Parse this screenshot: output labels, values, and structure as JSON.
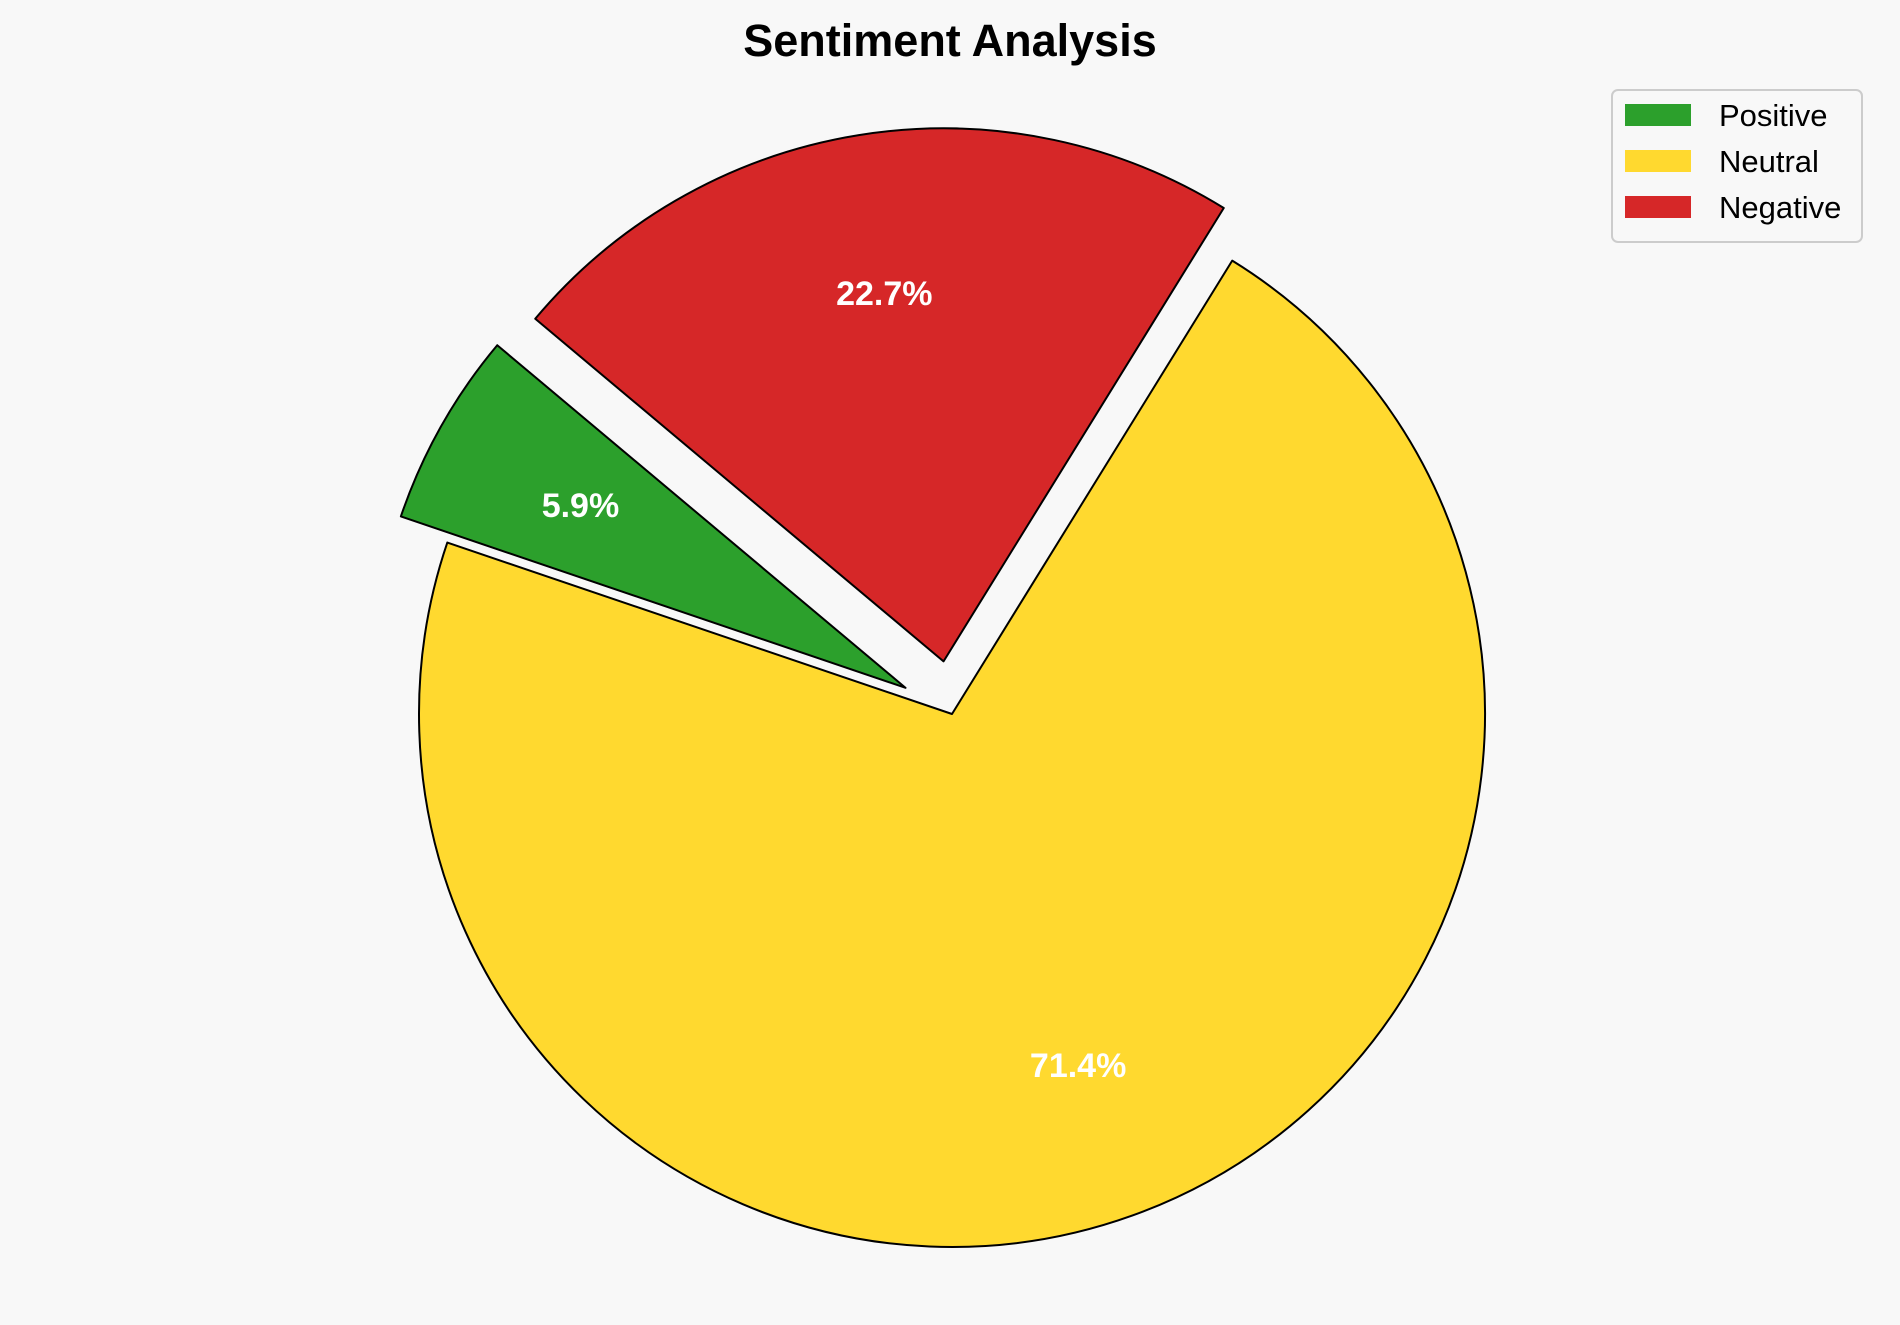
{
  "chart_data": {
    "type": "pie",
    "title": "Sentiment Analysis",
    "categories": [
      "Positive",
      "Neutral",
      "Negative"
    ],
    "values": [
      5.9,
      71.4,
      22.7
    ],
    "labels": [
      "5.9%",
      "71.4%",
      "22.7%"
    ],
    "colors": [
      "#2ca02c",
      "#ffd92f",
      "#d62728"
    ],
    "explode": [
      0.1,
      0,
      0.1
    ],
    "start_angle": 140,
    "legend_placement": "top-right",
    "legend": [
      "Positive",
      "Neutral",
      "Negative"
    ]
  }
}
